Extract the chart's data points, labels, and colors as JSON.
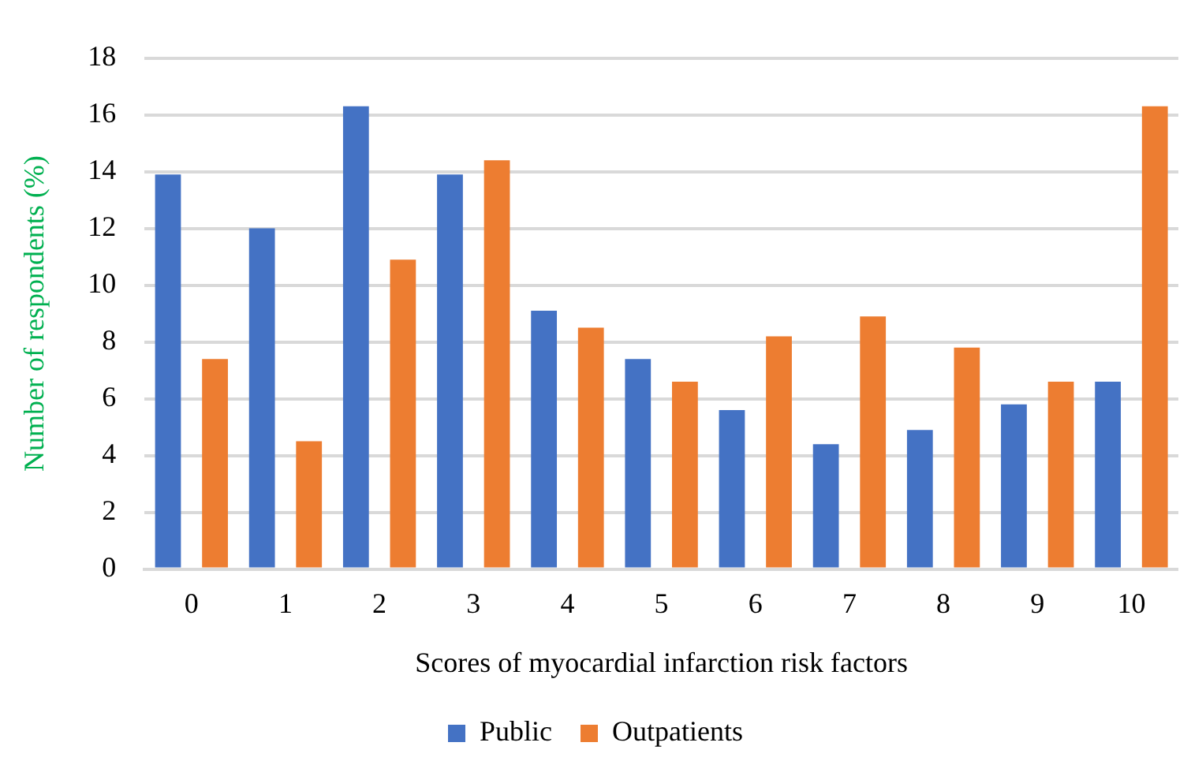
{
  "chart_data": {
    "type": "bar",
    "xlabel": "Scores of myocardial infarction risk factors",
    "ylabel": "Number of respondents (%)",
    "categories": [
      "0",
      "1",
      "2",
      "3",
      "4",
      "5",
      "6",
      "7",
      "8",
      "9",
      "10"
    ],
    "series": [
      {
        "name": "Public",
        "color": "#4472c4",
        "values": [
          13.9,
          12.0,
          16.3,
          13.9,
          9.1,
          7.4,
          5.6,
          4.4,
          4.9,
          5.8,
          6.6
        ]
      },
      {
        "name": "Outpatients",
        "color": "#ed7d31",
        "values": [
          7.4,
          4.5,
          10.9,
          14.4,
          8.5,
          6.6,
          8.2,
          8.9,
          7.8,
          6.6,
          16.3
        ]
      }
    ],
    "ylim": [
      0,
      18
    ],
    "yticks": [
      0,
      2,
      4,
      6,
      8,
      10,
      12,
      14,
      16,
      18
    ],
    "grid": "y",
    "legend": "bottom"
  }
}
